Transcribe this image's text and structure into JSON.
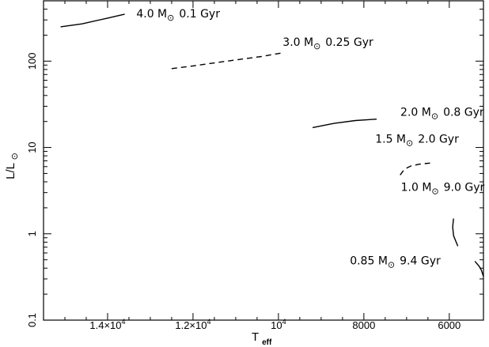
{
  "chart_data": {
    "type": "line",
    "xlabel": "T",
    "xlabel_sub": "eff",
    "ylabel_main": "L/L",
    "ylabel_sub": "⊙",
    "xlim_desc": [
      15500,
      5200
    ],
    "ylim": [
      0.1,
      500
    ],
    "x_axis_reversed": true,
    "y_scale": "log",
    "x_ticks": [
      {
        "value": 14000,
        "label_base": "1.4×10",
        "label_exp": "4"
      },
      {
        "value": 12000,
        "label_base": "1.2×10",
        "label_exp": "4"
      },
      {
        "value": 10000,
        "label_base": "10",
        "label_exp": "4"
      },
      {
        "value": 8000,
        "label": "8000"
      },
      {
        "value": 6000,
        "label": "6000"
      }
    ],
    "y_ticks": [
      {
        "value": 0.1,
        "label": "0.1"
      },
      {
        "value": 1,
        "label": "1"
      },
      {
        "value": 10,
        "label": "10"
      },
      {
        "value": 100,
        "label": "100"
      }
    ],
    "series": [
      {
        "name": "4.0 M⊙ 0.1 Gyr",
        "mass": "4.0 M",
        "age": "0.1 Gyr",
        "dash": "solid",
        "x": [
          15100,
          14600,
          14000,
          13600
        ],
        "y": [
          250,
          270,
          315,
          350
        ]
      },
      {
        "name": "3.0 M⊙ 0.25 Gyr",
        "mass": "3.0 M",
        "age": "0.25 Gyr",
        "dash": "dashed",
        "x": [
          12500,
          12000,
          11200,
          10400,
          9900
        ],
        "y": [
          82,
          88,
          100,
          113,
          125
        ]
      },
      {
        "name": "2.0 M⊙ 0.8 Gyr",
        "mass": "2.0 M",
        "age": "0.8 Gyr",
        "dash": "solid",
        "x": [
          9200,
          8700,
          8200,
          7900,
          7700
        ],
        "y": [
          17,
          19,
          20.5,
          21,
          21.3
        ]
      },
      {
        "name": "1.5 M⊙ 2.0 Gyr",
        "mass": "1.5 M",
        "age": "2.0 Gyr",
        "dash": "dashed",
        "x": [
          7150,
          7050,
          6900,
          6700,
          6450
        ],
        "y": [
          4.8,
          5.6,
          6.1,
          6.4,
          6.6
        ]
      },
      {
        "name": "1.0 M⊙ 9.0 Gyr",
        "mass": "1.0 M",
        "age": "9.0 Gyr",
        "dash": "solid",
        "x": [
          5900,
          5920,
          5900,
          5800
        ],
        "y": [
          1.5,
          1.2,
          0.95,
          0.72
        ]
      },
      {
        "name": "0.85 M⊙ 9.4 Gyr",
        "mass": "0.85 M",
        "age": "9.4 Gyr",
        "dash": "solid",
        "x": [
          5400,
          5300,
          5250,
          5200
        ],
        "y": [
          0.48,
          0.42,
          0.38,
          0.32
        ]
      }
    ]
  }
}
